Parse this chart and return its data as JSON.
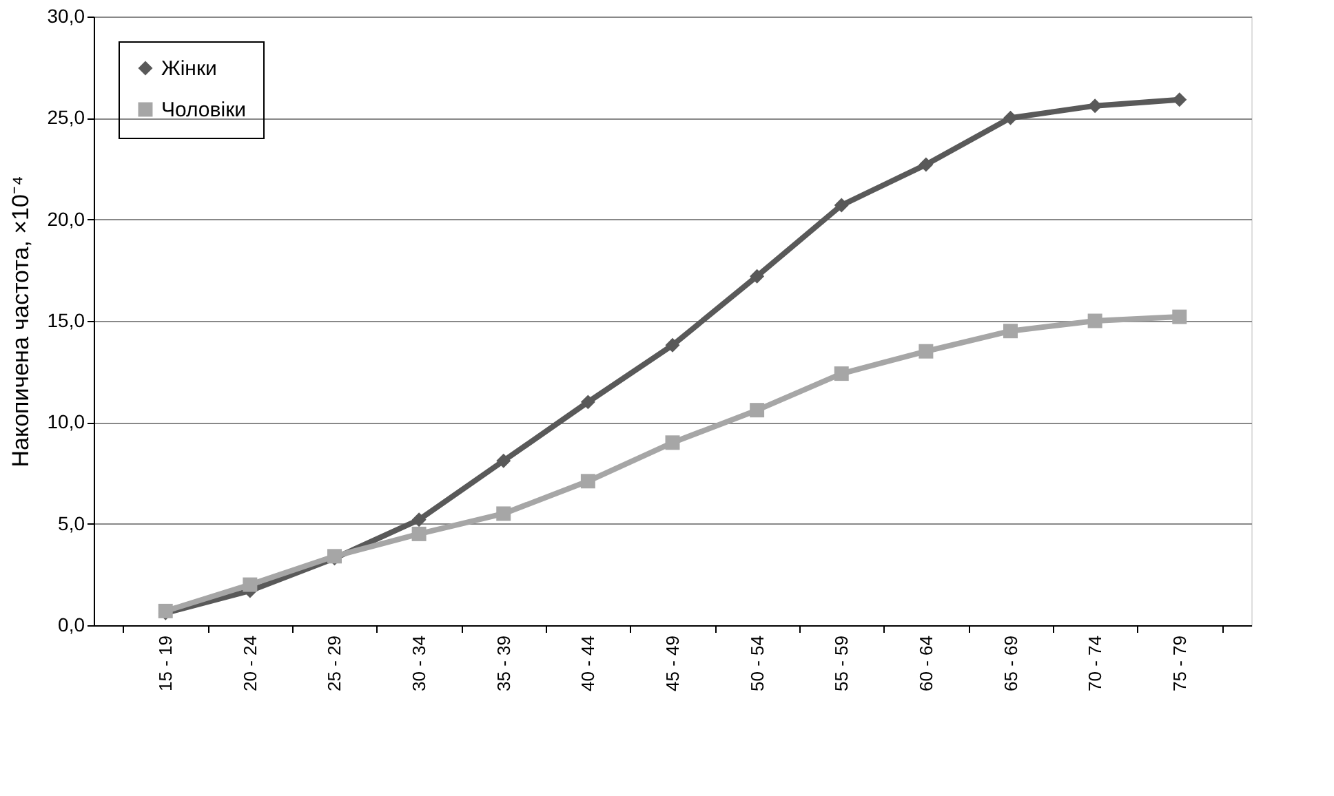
{
  "chart_data": {
    "type": "line",
    "ylabel": "Накопичена частота, ×10⁻⁴",
    "categories": [
      "15 - 19",
      "20 - 24",
      "25 - 29",
      "30 - 34",
      "35 - 39",
      "40 - 44",
      "45 - 49",
      "50 - 54",
      "55 - 59",
      "60 - 64",
      "65 - 69",
      "70 - 74",
      "75 - 79"
    ],
    "series": [
      {
        "name": "Жінки",
        "color": "#595959",
        "marker": "diamond",
        "values": [
          0.6,
          1.7,
          3.3,
          5.2,
          8.1,
          11.0,
          13.8,
          17.2,
          20.7,
          22.7,
          25.0,
          25.6,
          25.9
        ]
      },
      {
        "name": "Чоловіки",
        "color": "#a6a6a6",
        "marker": "square",
        "values": [
          0.7,
          2.0,
          3.4,
          4.5,
          5.5,
          7.1,
          9.0,
          10.6,
          12.4,
          13.5,
          14.5,
          15.0,
          15.2
        ]
      }
    ],
    "ylim": [
      0,
      30
    ],
    "yticks": [
      {
        "value": 0,
        "label": "0,0"
      },
      {
        "value": 5,
        "label": "5,0"
      },
      {
        "value": 10,
        "label": "10,0"
      },
      {
        "value": 15,
        "label": "15,0"
      },
      {
        "value": 20,
        "label": "20,0"
      },
      {
        "value": 25,
        "label": "25,0"
      },
      {
        "value": 30,
        "label": "30,0"
      }
    ],
    "grid": "y",
    "legend": "top left",
    "line_style": "solid"
  }
}
